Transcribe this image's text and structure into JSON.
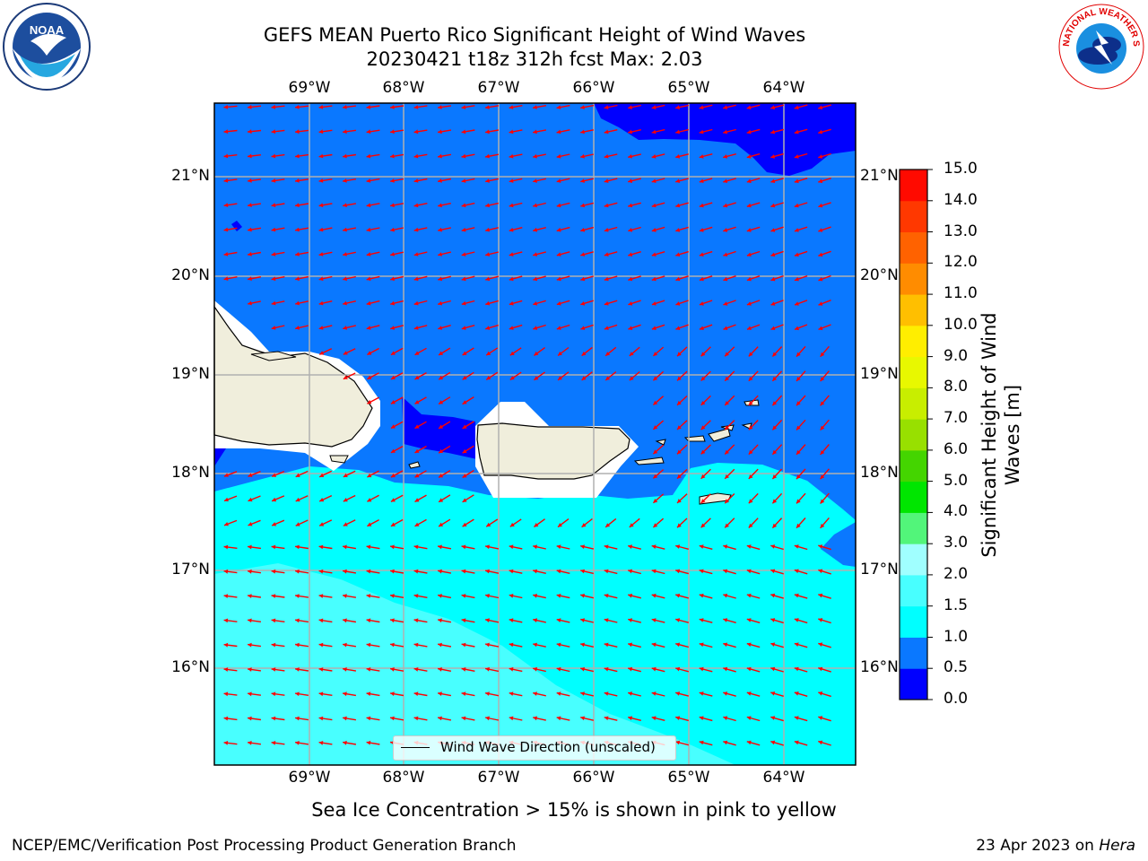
{
  "header": {
    "title_line1": "GEFS MEAN Puerto Rico Significant Height of Wind Waves",
    "title_line2": "20230421 t18z 312h fcst   Max: 2.03"
  },
  "map": {
    "lon_ticks": [
      "69°W",
      "68°W",
      "67°W",
      "66°W",
      "65°W",
      "64°W"
    ],
    "lat_ticks": [
      "21°N",
      "20°N",
      "19°N",
      "18°N",
      "17°N",
      "16°N"
    ],
    "legend_label": "Wind Wave Direction (unscaled)",
    "land_color": "#f0eedc",
    "arrow_color": "#ff0000",
    "grid_color": "#b0b0b0"
  },
  "colorbar": {
    "title_line1": "Significant Height of Wind",
    "title_line2": "Waves [m]",
    "tick_labels": [
      "0.0",
      "0.5",
      "1.0",
      "1.5",
      "2.0",
      "3.0",
      "4.0",
      "5.0",
      "6.0",
      "7.0",
      "8.0",
      "9.0",
      "10.0",
      "11.0",
      "12.0",
      "13.0",
      "14.0",
      "15.0"
    ],
    "colors": [
      "#0000ff",
      "#0a78ff",
      "#00ffff",
      "#48ffff",
      "#a0ffff",
      "#52f57a",
      "#00e600",
      "#44d500",
      "#98e000",
      "#c8ee00",
      "#e8f800",
      "#ffee00",
      "#ffbf00",
      "#ff8c00",
      "#ff6200",
      "#ff3800",
      "#ff0a00"
    ]
  },
  "footer": {
    "sea_ice_note": "Sea Ice Concentration > 15% is shown in pink to yellow",
    "left": "NCEP/EMC/Verification Post Processing Product Generation Branch",
    "right_date": "23 Apr 2023 on ",
    "right_host": "Hera"
  },
  "logos": {
    "noaa_text": "NOAA",
    "nws_text": "NATIONAL WEATHER SERVICE"
  }
}
